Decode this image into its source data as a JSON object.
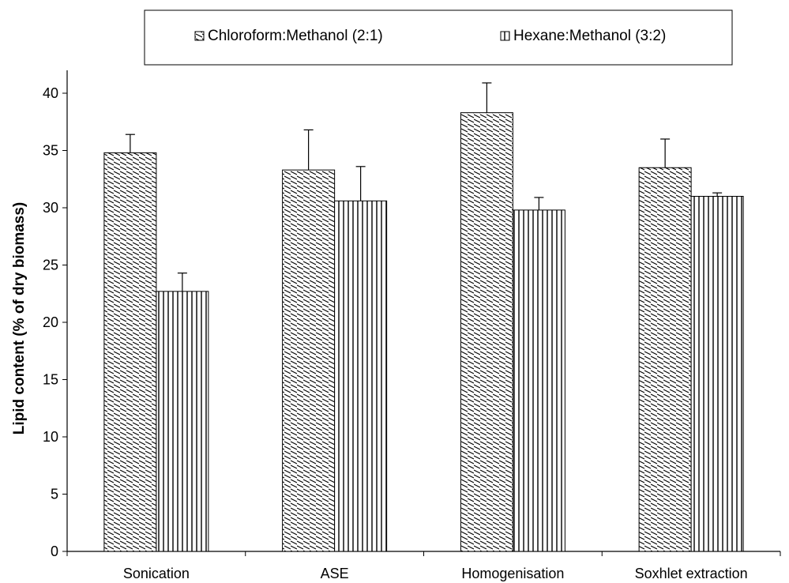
{
  "chart_data": {
    "type": "bar",
    "title": "",
    "xlabel": "",
    "ylabel": "Lipid content (% of dry biomass)",
    "ylim": [
      0,
      42
    ],
    "yticks": [
      0,
      5,
      10,
      15,
      20,
      25,
      30,
      35,
      40
    ],
    "grid": false,
    "legend_position": "top",
    "categories": [
      "Sonication",
      "ASE",
      "Homogenisation",
      "Soxhlet extraction"
    ],
    "series": [
      {
        "name": "Chloroform:Methanol (2:1)",
        "pattern": "diagonal-hatch",
        "values": [
          34.8,
          33.3,
          38.3,
          33.5
        ],
        "errors": [
          1.6,
          3.5,
          2.6,
          2.5
        ]
      },
      {
        "name": "Hexane:Methanol (3:2)",
        "pattern": "vertical-stripes",
        "values": [
          22.7,
          30.6,
          29.8,
          31.0
        ],
        "errors": [
          1.6,
          3.0,
          1.1,
          0.3
        ]
      }
    ]
  }
}
